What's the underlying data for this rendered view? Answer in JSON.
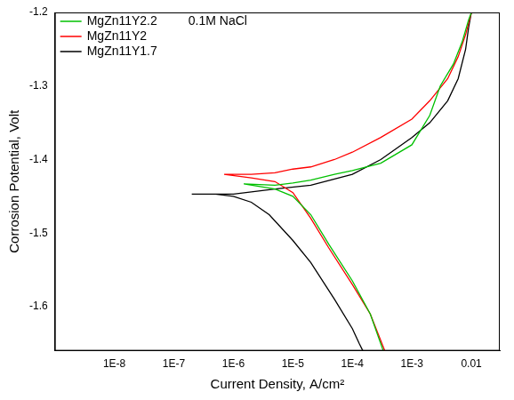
{
  "chart_data": {
    "type": "line",
    "x_label": "Current Density, A/cm²",
    "y_label": "Corrosion Potential, Volt",
    "annotations": [
      "0.1M NaCl"
    ],
    "log": "x",
    "grid": false,
    "legend": "top-left",
    "xlim": [
      1e-09,
      0.03
    ],
    "xticks": [
      {
        "value": 1e-08,
        "label": "1E-8"
      },
      {
        "value": 1e-07,
        "label": "1E-7"
      },
      {
        "value": 1e-06,
        "label": "1E-6"
      },
      {
        "value": 1e-05,
        "label": "1E-5"
      },
      {
        "value": 0.0001,
        "label": "1E-4"
      },
      {
        "value": 0.001,
        "label": "1E-3"
      },
      0.01
    ],
    "ylim": [
      -1.66,
      -1.2
    ],
    "yticks": [
      -1.6,
      -1.5,
      -1.4,
      -1.3,
      -1.2
    ],
    "series": [
      {
        "name": "MgZn11Y2.2",
        "color": "#00c000",
        "x": [
          0.00033,
          0.0002,
          0.0001,
          4e-05,
          2e-05,
          1e-05,
          5e-06,
          1.5e-06,
          5e-06,
          1e-05,
          2e-05,
          5e-05,
          0.0001,
          0.0003,
          0.001,
          0.002,
          0.003,
          0.005,
          0.007,
          0.009,
          0.01
        ],
        "values": [
          -1.66,
          -1.61,
          -1.565,
          -1.515,
          -1.475,
          -1.45,
          -1.44,
          -1.433,
          -1.435,
          -1.432,
          -1.428,
          -1.42,
          -1.415,
          -1.405,
          -1.38,
          -1.34,
          -1.3,
          -1.27,
          -1.24,
          -1.21,
          -1.2
        ]
      },
      {
        "name": "MgZn11Y2",
        "color": "#ff0000",
        "x": [
          0.00035,
          0.0002,
          0.0001,
          4e-05,
          2e-05,
          1e-05,
          5e-06,
          2e-06,
          7e-07,
          2e-06,
          5e-06,
          1e-05,
          2e-05,
          5e-05,
          0.0001,
          0.0003,
          0.001,
          0.002,
          0.004,
          0.006,
          0.008,
          0.01
        ],
        "values": [
          -1.66,
          -1.61,
          -1.57,
          -1.52,
          -1.48,
          -1.445,
          -1.43,
          -1.425,
          -1.42,
          -1.42,
          -1.418,
          -1.413,
          -1.41,
          -1.4,
          -1.39,
          -1.37,
          -1.345,
          -1.32,
          -1.29,
          -1.26,
          -1.23,
          -1.2
        ]
      },
      {
        "name": "MgZn11Y1.7",
        "color": "#000000",
        "x": [
          0.00015,
          0.00013,
          0.0001,
          5e-05,
          2e-05,
          1e-05,
          4e-06,
          2e-06,
          1e-06,
          5e-07,
          2e-07,
          1e-06,
          5e-06,
          2e-05,
          0.0001,
          0.0003,
          0.001,
          0.002,
          0.004,
          0.006,
          0.008,
          0.009,
          0.01
        ],
        "values": [
          -1.66,
          -1.65,
          -1.63,
          -1.59,
          -1.54,
          -1.51,
          -1.475,
          -1.458,
          -1.45,
          -1.447,
          -1.447,
          -1.447,
          -1.44,
          -1.435,
          -1.42,
          -1.4,
          -1.37,
          -1.35,
          -1.32,
          -1.29,
          -1.25,
          -1.22,
          -1.2
        ]
      }
    ]
  }
}
